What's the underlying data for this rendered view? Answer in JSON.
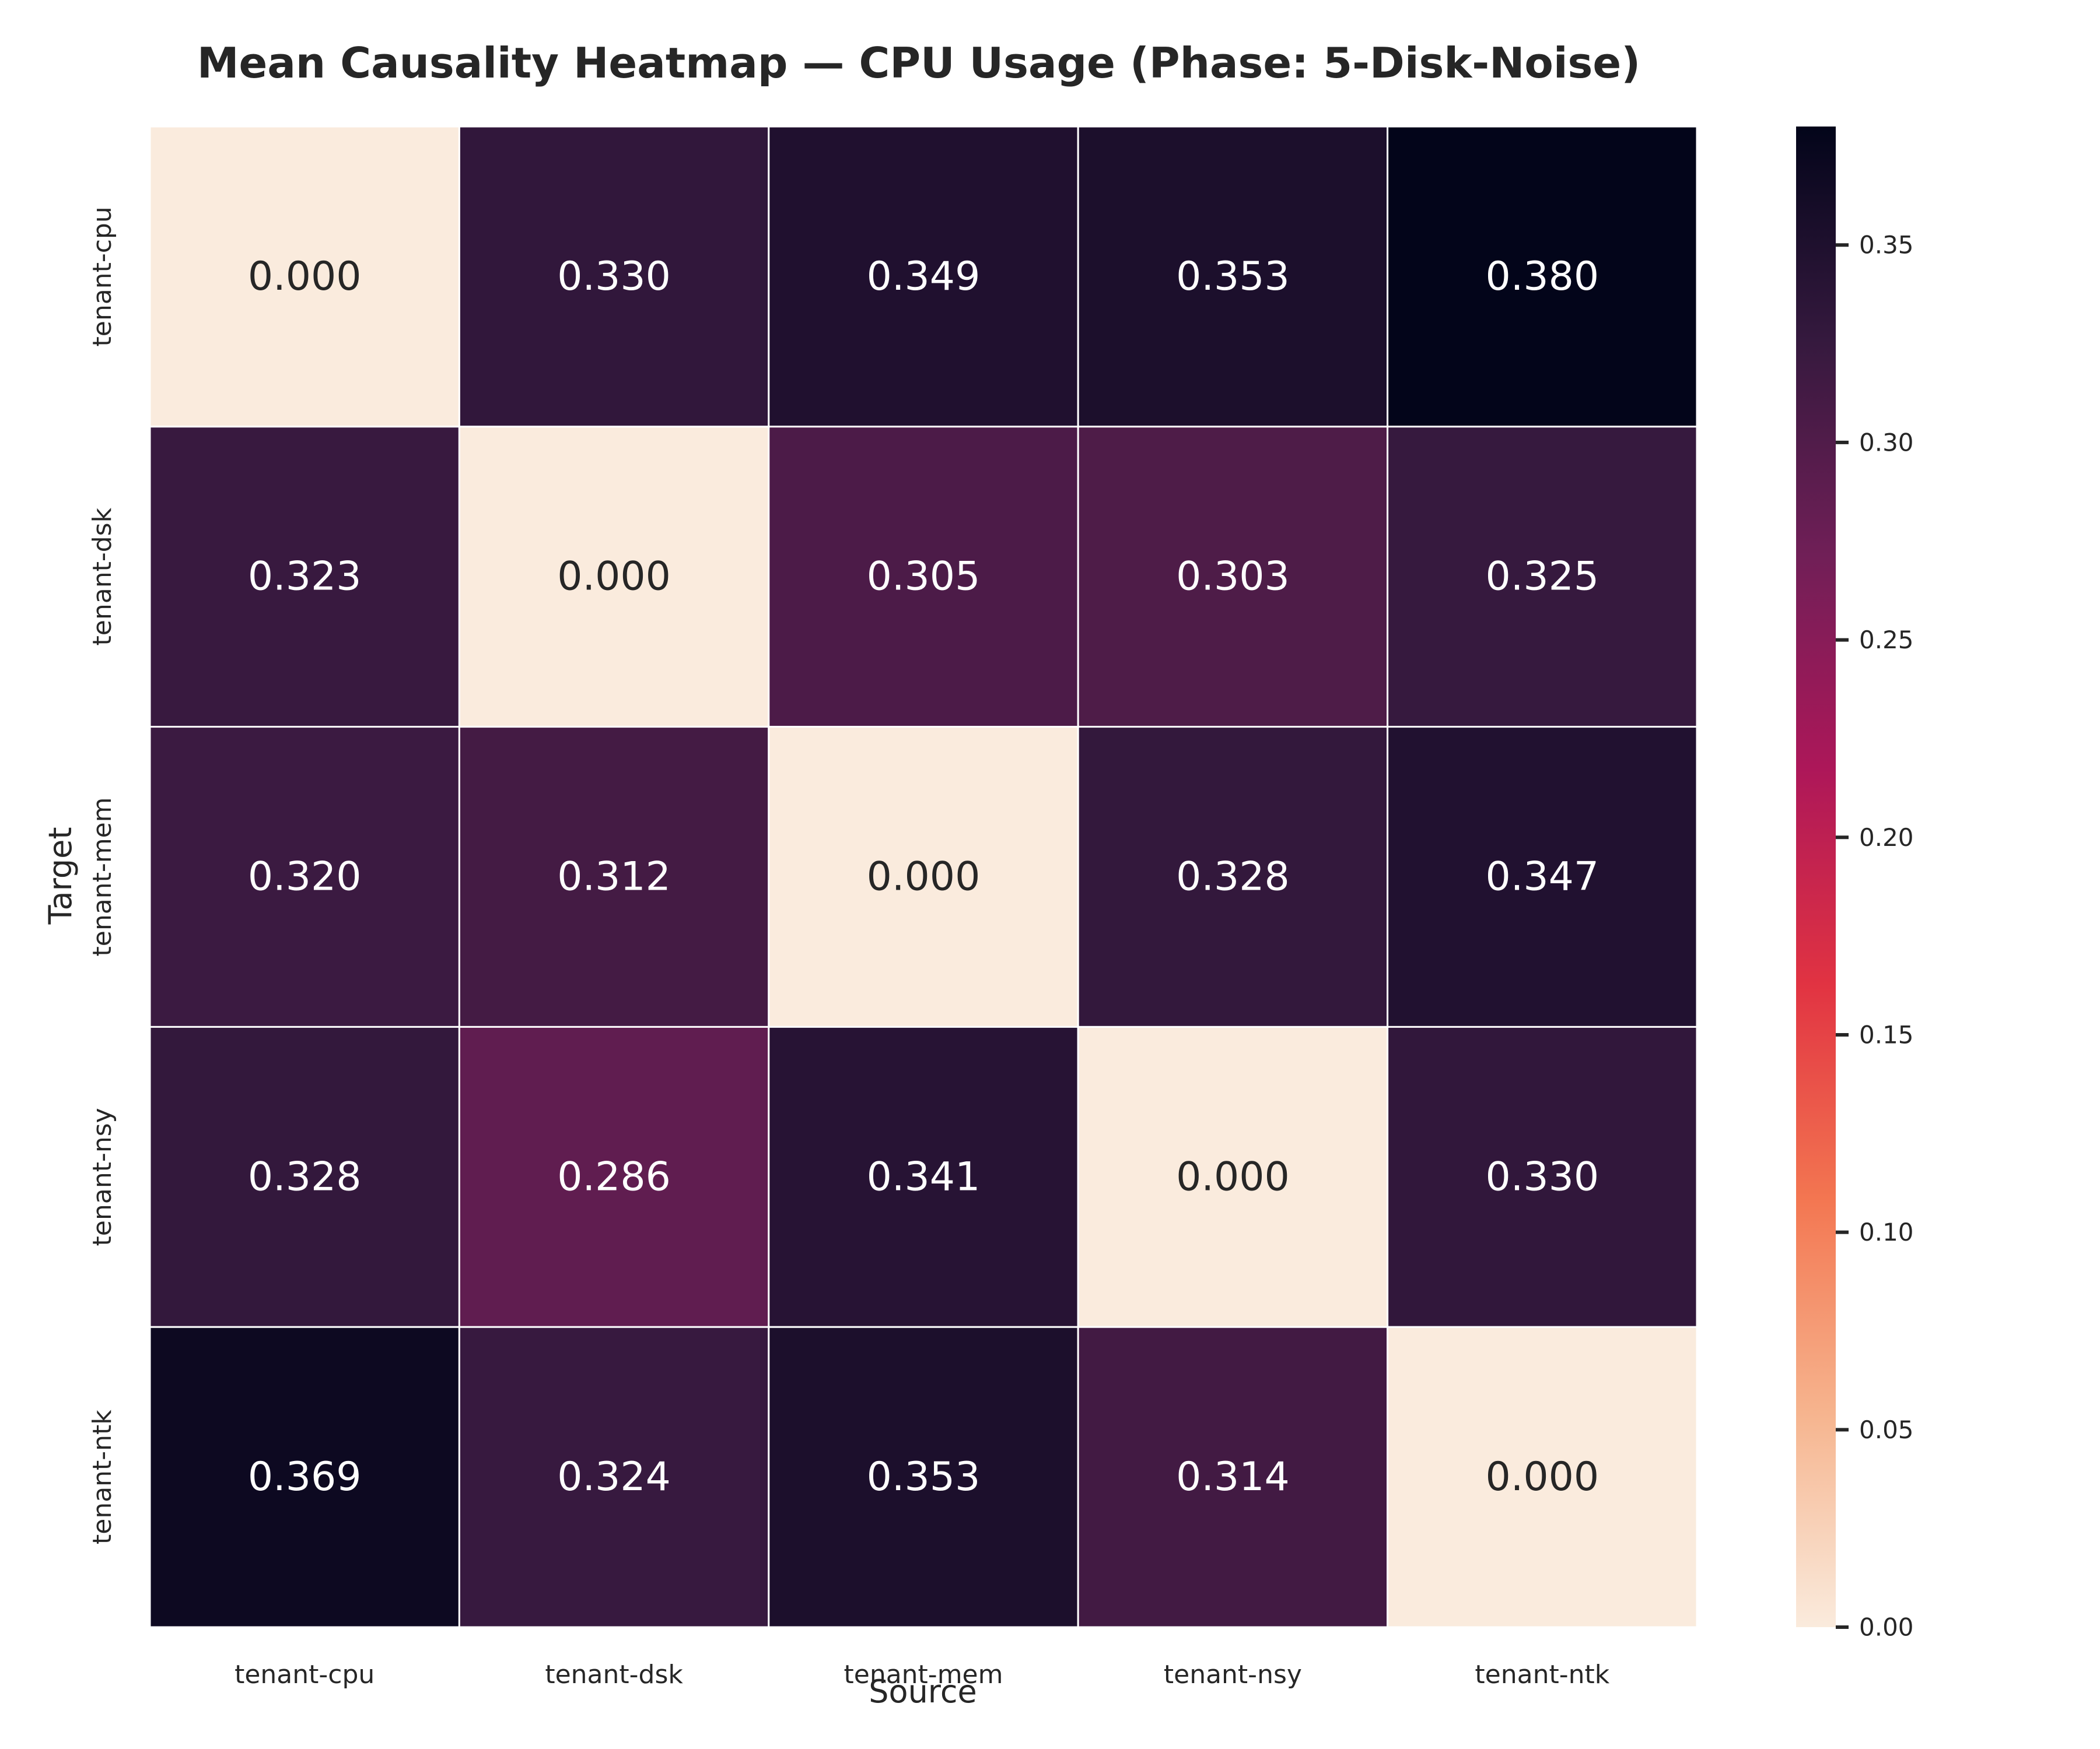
{
  "chart_data": {
    "type": "heatmap",
    "title": "Mean Causality Heatmap — CPU Usage (Phase: 5-Disk-Noise)",
    "xlabel": "Source",
    "ylabel": "Target",
    "x_categories": [
      "tenant-cpu",
      "tenant-dsk",
      "tenant-mem",
      "tenant-nsy",
      "tenant-ntk"
    ],
    "y_categories": [
      "tenant-cpu",
      "tenant-dsk",
      "tenant-mem",
      "tenant-nsy",
      "tenant-ntk"
    ],
    "values": [
      [
        0.0,
        0.33,
        0.349,
        0.353,
        0.38
      ],
      [
        0.323,
        0.0,
        0.305,
        0.303,
        0.325
      ],
      [
        0.32,
        0.312,
        0.0,
        0.328,
        0.347
      ],
      [
        0.328,
        0.286,
        0.341,
        0.0,
        0.33
      ],
      [
        0.369,
        0.324,
        0.353,
        0.314,
        0.0
      ]
    ],
    "cell_labels": [
      [
        "0.000",
        "0.330",
        "0.349",
        "0.353",
        "0.380"
      ],
      [
        "0.323",
        "0.000",
        "0.305",
        "0.303",
        "0.325"
      ],
      [
        "0.320",
        "0.312",
        "0.000",
        "0.328",
        "0.347"
      ],
      [
        "0.328",
        "0.286",
        "0.341",
        "0.000",
        "0.330"
      ],
      [
        "0.369",
        "0.324",
        "0.353",
        "0.314",
        "0.000"
      ]
    ],
    "colorbar": {
      "min": 0.0,
      "max": 0.38,
      "ticks": [
        0.0,
        0.05,
        0.1,
        0.15,
        0.2,
        0.25,
        0.3,
        0.35
      ],
      "tick_labels": [
        "0.00",
        "0.05",
        "0.10",
        "0.15",
        "0.20",
        "0.25",
        "0.30",
        "0.35"
      ],
      "colormap": "rocket_r",
      "colors": [
        "#faebdd",
        "#f6b48e",
        "#f37651",
        "#e13342",
        "#ad1759",
        "#701f57",
        "#35193e",
        "#03051a"
      ]
    },
    "grid": false
  }
}
